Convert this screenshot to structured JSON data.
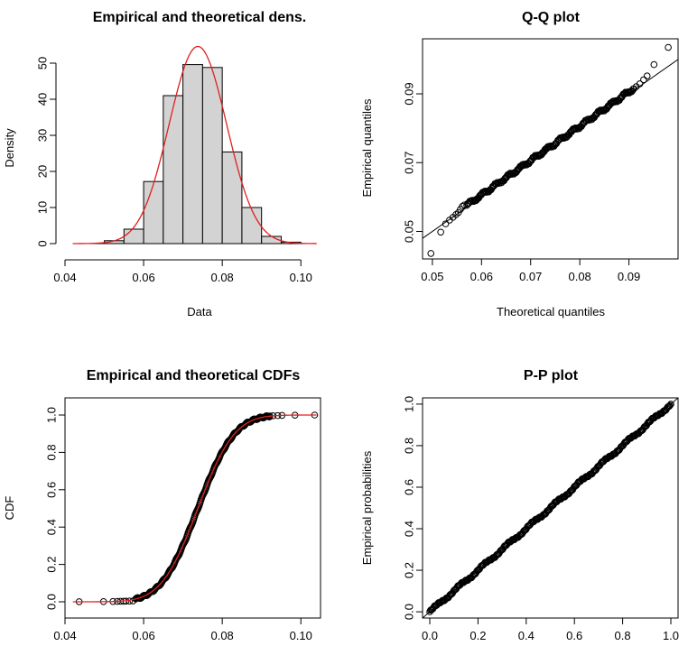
{
  "chart_data": [
    {
      "type": "bar",
      "title": "Empirical and theoretical dens.",
      "xlabel": "Data",
      "ylabel": "Density",
      "xlim": [
        0.04,
        0.105
      ],
      "ylim": [
        0,
        55
      ],
      "x_ticks": [
        "0.04",
        "0.06",
        "0.08",
        "0.10"
      ],
      "y_ticks": [
        "0",
        "10",
        "20",
        "30",
        "40",
        "50"
      ],
      "bins": [
        {
          "x0": 0.05,
          "x1": 0.055,
          "value": 0.8
        },
        {
          "x0": 0.055,
          "x1": 0.06,
          "value": 4.0
        },
        {
          "x0": 0.06,
          "x1": 0.065,
          "value": 17.2
        },
        {
          "x0": 0.065,
          "x1": 0.07,
          "value": 41.0
        },
        {
          "x0": 0.07,
          "x1": 0.075,
          "value": 49.6
        },
        {
          "x0": 0.075,
          "x1": 0.08,
          "value": 48.8
        },
        {
          "x0": 0.08,
          "x1": 0.085,
          "value": 25.4
        },
        {
          "x0": 0.085,
          "x1": 0.09,
          "value": 10.0
        },
        {
          "x0": 0.09,
          "x1": 0.095,
          "value": 2.0
        },
        {
          "x0": 0.095,
          "x1": 0.1,
          "value": 0.4
        }
      ],
      "density_curve": {
        "distribution": "normal",
        "mean": 0.0738,
        "sd": 0.0073,
        "color": "#e02020"
      },
      "bar_fill": "#d3d3d3"
    },
    {
      "type": "scatter",
      "title": "Q-Q plot",
      "xlabel": "Theoretical quantiles",
      "ylabel": "Empirical quantiles",
      "xlim": [
        0.048,
        0.1
      ],
      "ylim": [
        0.042,
        0.106
      ],
      "x_ticks": [
        "0.05",
        "0.06",
        "0.07",
        "0.08",
        "0.09"
      ],
      "y_ticks": [
        "0.05",
        "0.07",
        "0.09"
      ],
      "reference_line": {
        "slope": 1,
        "intercept": 0
      },
      "tail_points": [
        [
          0.0497,
          0.0436
        ],
        [
          0.0517,
          0.0498
        ],
        [
          0.0527,
          0.0522
        ],
        [
          0.0535,
          0.0533
        ],
        [
          0.0542,
          0.0541
        ],
        [
          0.0548,
          0.0549
        ],
        [
          0.0553,
          0.0555
        ],
        [
          0.0557,
          0.0564
        ],
        [
          0.0561,
          0.0573
        ],
        [
          0.0565,
          0.0577
        ],
        [
          0.0915,
          0.0921
        ],
        [
          0.0922,
          0.0929
        ],
        [
          0.093,
          0.0941
        ],
        [
          0.0937,
          0.0952
        ],
        [
          0.0951,
          0.0985
        ],
        [
          0.098,
          0.1035
        ]
      ],
      "bulk_range": [
        0.057,
        0.091
      ]
    },
    {
      "type": "line",
      "title": "Empirical and theoretical CDFs",
      "xlabel": "",
      "ylabel": "CDF",
      "xlim": [
        0.04,
        0.105
      ],
      "ylim": [
        0,
        1
      ],
      "x_ticks": [
        "0.04",
        "0.06",
        "0.08",
        "0.10"
      ],
      "y_ticks": [
        "0.0",
        "0.2",
        "0.4",
        "0.6",
        "0.8",
        "1.0"
      ],
      "theoretical": {
        "distribution": "normal",
        "mean": 0.0738,
        "sd": 0.0073,
        "color": "#e02020"
      },
      "lower_tail_points": [
        0.0436,
        0.0498,
        0.0522,
        0.0533,
        0.0541,
        0.0549,
        0.0555,
        0.0564,
        0.0573
      ],
      "upper_tail_points": [
        0.0921,
        0.0929,
        0.0941,
        0.0952,
        0.0985,
        0.1035
      ]
    },
    {
      "type": "scatter",
      "title": "P-P plot",
      "xlabel": "",
      "ylabel": "Empirical probabilities",
      "xlim": [
        -0.03,
        1.03
      ],
      "ylim": [
        -0.03,
        1.03
      ],
      "x_ticks": [
        "0.0",
        "0.2",
        "0.4",
        "0.6",
        "0.8",
        "1.0"
      ],
      "y_ticks": [
        "0.0",
        "0.2",
        "0.4",
        "0.6",
        "0.8",
        "1.0"
      ],
      "reference_line": {
        "slope": 1,
        "intercept": 0
      }
    }
  ]
}
